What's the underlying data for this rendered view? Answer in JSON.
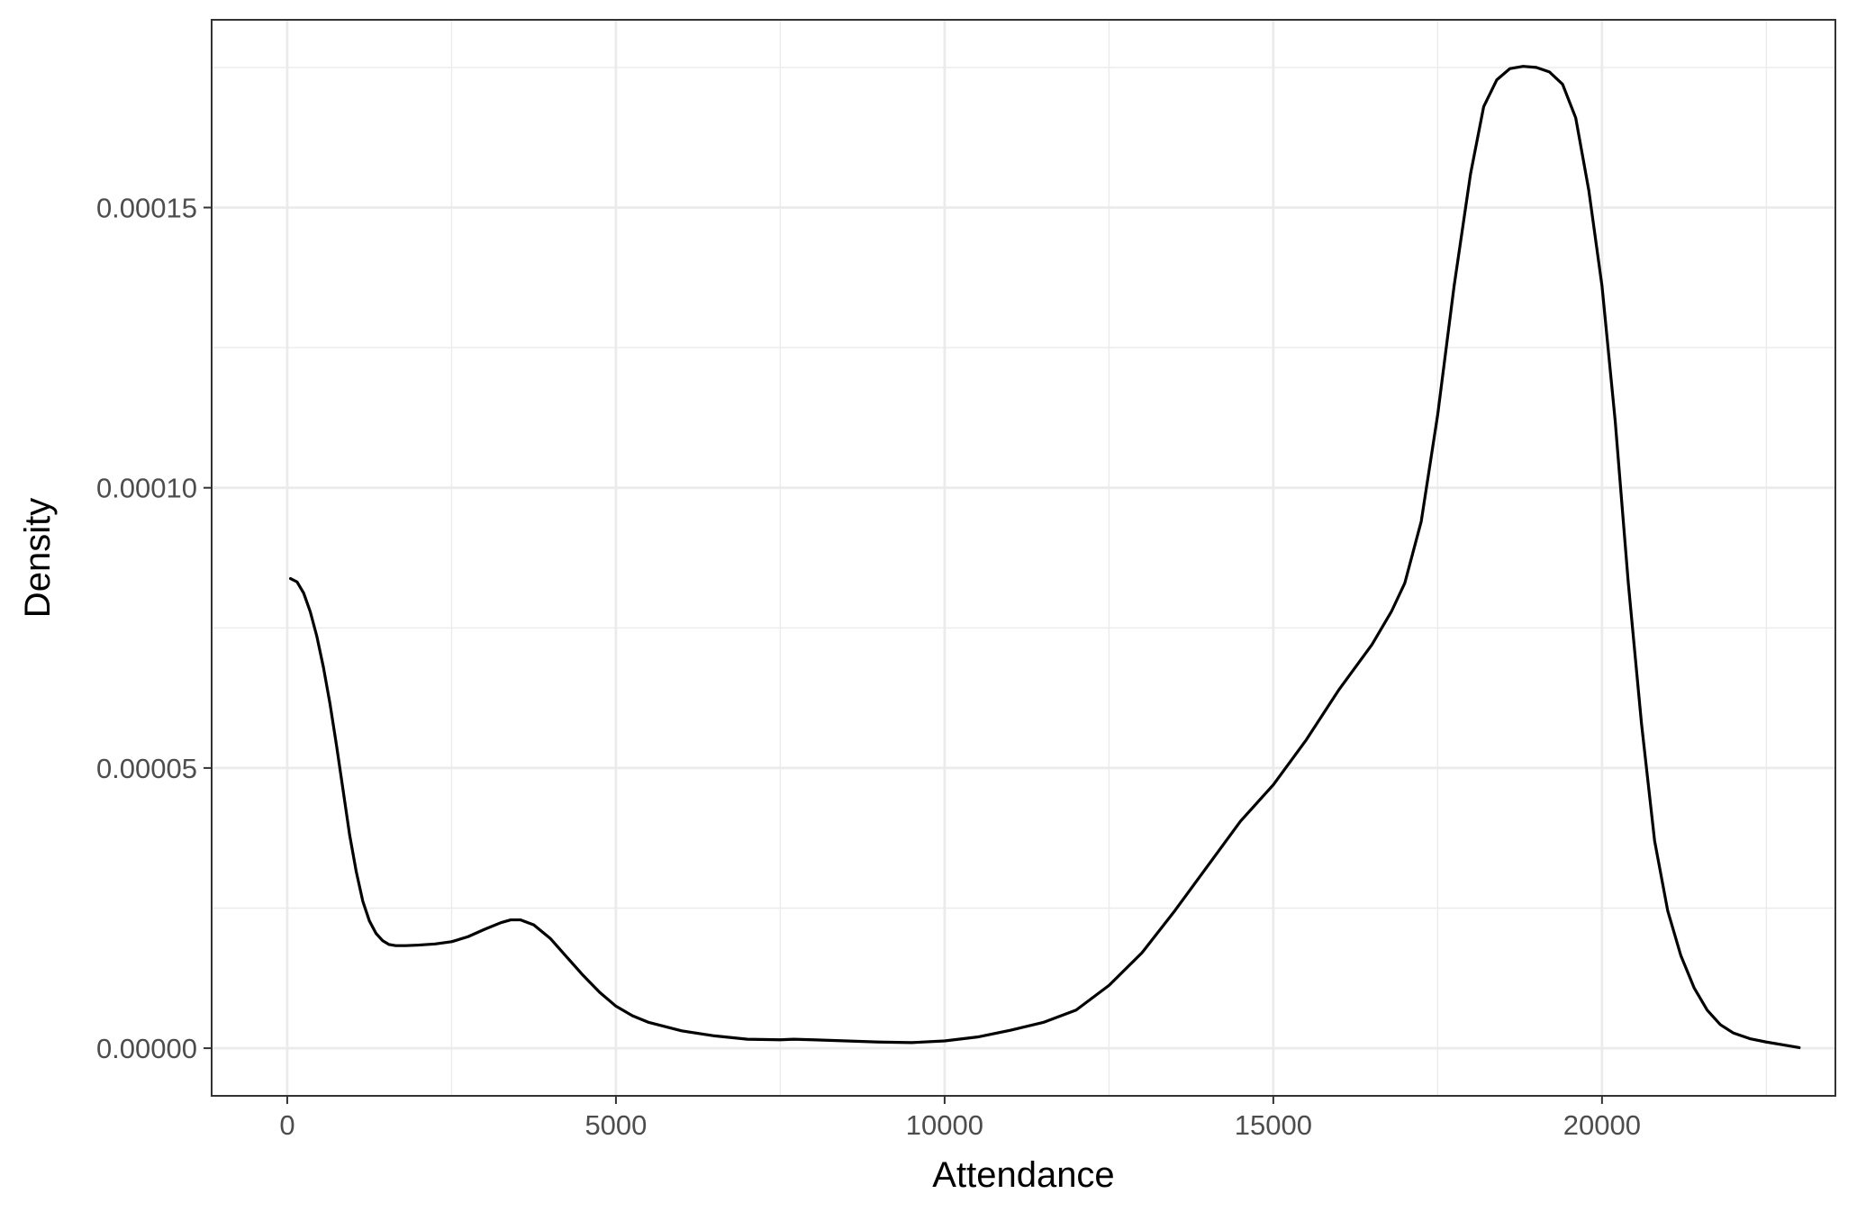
{
  "chart_data": {
    "type": "line",
    "title": "",
    "xlabel": "Attendance",
    "ylabel": "Density",
    "xlim": [
      -1150,
      23550
    ],
    "ylim": [
      -8.5e-06,
      0.0001835
    ],
    "x_ticks": [
      0,
      5000,
      10000,
      15000,
      20000
    ],
    "x_tick_labels": [
      "0",
      "5000",
      "10000",
      "15000",
      "20000"
    ],
    "x_minor_ticks": [
      2500,
      7500,
      12500,
      17500,
      22500
    ],
    "y_ticks": [
      0,
      5e-05,
      0.0001,
      0.00015
    ],
    "y_tick_labels": [
      "0.00000",
      "0.00005",
      "0.00010",
      "0.00015"
    ],
    "y_minor_ticks": [
      2.5e-05,
      7.5e-05,
      0.000125,
      0.000175
    ],
    "grid": true,
    "legend": "none",
    "line_color": "#000000",
    "series": [
      {
        "x": [
          50,
          150,
          250,
          350,
          450,
          550,
          650,
          750,
          850,
          950,
          1050,
          1150,
          1250,
          1350,
          1450,
          1550,
          1650,
          1800,
          2000,
          2250,
          2500,
          2750,
          3000,
          3250,
          3400,
          3550,
          3750,
          4000,
          4250,
          4500,
          4750,
          5000,
          5250,
          5500,
          6000,
          6500,
          7000,
          7500,
          7700,
          8000,
          8500,
          9000,
          9500,
          10000,
          10500,
          11000,
          11500,
          12000,
          12500,
          13000,
          13500,
          14000,
          14500,
          15000,
          15500,
          16000,
          16500,
          16800,
          17000,
          17250,
          17500,
          17750,
          18000,
          18200,
          18400,
          18600,
          18800,
          19000,
          19200,
          19400,
          19600,
          19800,
          20000,
          20200,
          20400,
          20600,
          20800,
          21000,
          21200,
          21400,
          21600,
          21800,
          22000,
          22250,
          22500,
          22750,
          23000
        ],
        "y": [
          8.38e-05,
          8.32e-05,
          8.12e-05,
          7.79e-05,
          7.35e-05,
          6.8e-05,
          6.15e-05,
          5.4e-05,
          4.6e-05,
          3.8e-05,
          3.15e-05,
          2.62e-05,
          2.27e-05,
          2.05e-05,
          1.92e-05,
          1.85e-05,
          1.83e-05,
          1.83e-05,
          1.84e-05,
          1.86e-05,
          1.9e-05,
          1.99e-05,
          2.12e-05,
          2.24e-05,
          2.29e-05,
          2.29e-05,
          2.2e-05,
          1.96e-05,
          1.63e-05,
          1.3e-05,
          1e-05,
          7.5e-06,
          5.8e-06,
          4.6e-06,
          3.1e-06,
          2.2e-06,
          1.6e-06,
          1.5e-06,
          1.6e-06,
          1.5e-06,
          1.3e-06,
          1.1e-06,
          1e-06,
          1.3e-06,
          2e-06,
          3.2e-06,
          4.6e-06,
          6.8e-06,
          1.12e-05,
          1.7e-05,
          2.45e-05,
          3.25e-05,
          4.05e-05,
          4.7e-05,
          5.5e-05,
          6.4e-05,
          7.2e-05,
          7.8e-05,
          8.3e-05,
          9.4e-05,
          0.000113,
          0.000136,
          0.000156,
          0.000168,
          0.0001728,
          0.0001748,
          0.0001752,
          0.000175,
          0.0001742,
          0.000172,
          0.000166,
          0.000153,
          0.000136,
          0.000112,
          8.3e-05,
          5.8e-05,
          3.7e-05,
          2.45e-05,
          1.65e-05,
          1.08e-05,
          6.8e-06,
          4.2e-06,
          2.7e-06,
          1.7e-06,
          1.1e-06,
          6e-07,
          1e-07
        ]
      }
    ]
  }
}
